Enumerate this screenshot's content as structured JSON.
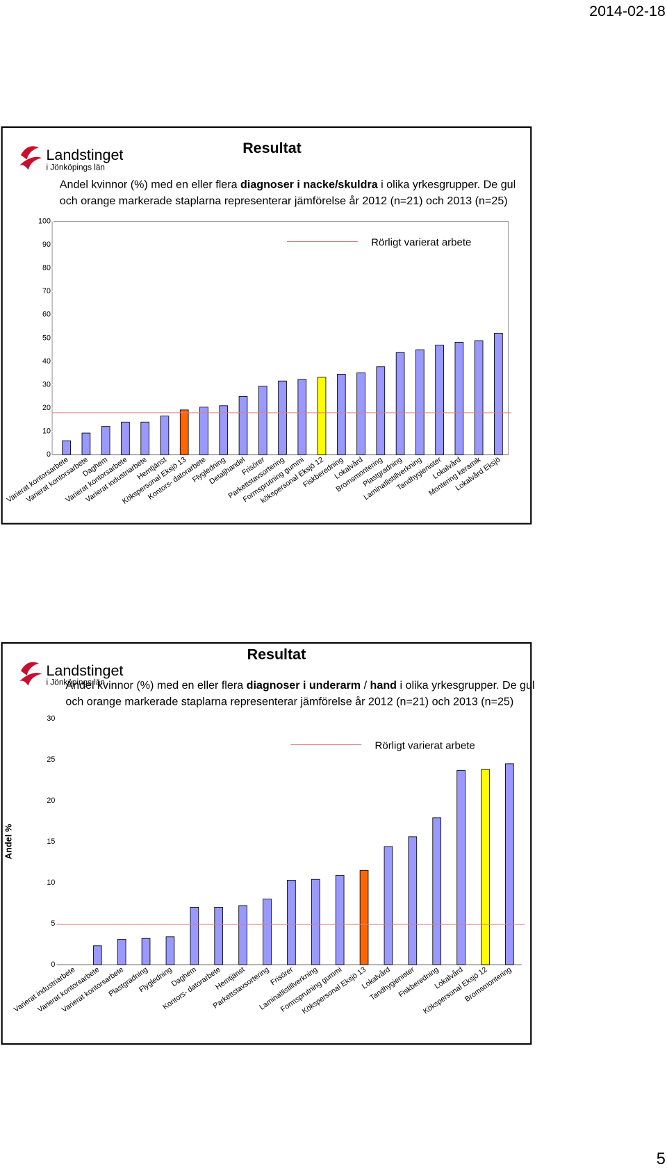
{
  "header": {
    "date": "2014-02-18"
  },
  "footer": {
    "page": "5"
  },
  "logo": {
    "name": "Landstinget",
    "region": "i Jönköpings län"
  },
  "descriptions": [
    [
      {
        "text": "Andel kvinnor (%) med en eller flera ",
        "bold": false
      },
      {
        "text": "diagnoser i nacke/skuldra",
        "bold": true
      },
      {
        "text": " i olika yrkesgrupper. De gul och orange markerade staplarna representerar jämförelse år 2012 (n=21) och 2013 (n=25)",
        "bold": false
      }
    ],
    [
      {
        "text": "Andel kvinnor (%) med en eller flera ",
        "bold": false
      },
      {
        "text": "diagnoser i underarm",
        "bold": true
      },
      {
        "text": " / ",
        "bold": false
      },
      {
        "text": "hand",
        "bold": true
      },
      {
        "text": " i olika yrkesgrupper. De gul och orange markerade staplarna representerar  jämförelse år 2012 (n=21) och 2013 (n=25)",
        "bold": false
      }
    ]
  ],
  "chart_data": [
    {
      "type": "bar",
      "title": "Resultat",
      "categories": [
        "Varierat kontorsarbete",
        "Varierat kontorsarbete",
        "Daghem",
        "Varierat kontorsarbete",
        "Varierat industriarbete",
        "Hemtjänst",
        "Kökspersonal Eksjö 13",
        "Kontors- datorarbete",
        "Flygledning",
        "Detaljhandel",
        "Frisörer",
        "Parkettstavsortering",
        "Formsprutning gummi",
        "kökspersonal Eksjö 12",
        "Fiskberedning",
        "Lokalvård",
        "Bromsmontering",
        "Plastgradning",
        "Laminatlistillverkning",
        "Tandhygienister",
        "Lokalvård",
        "Montering keramik",
        "Lokalvård Eksjö"
      ],
      "values": [
        6,
        9.3,
        12.1,
        14,
        14,
        16.6,
        19.2,
        20.4,
        21,
        25,
        29.4,
        31.6,
        32.3,
        33.2,
        34.5,
        35.1,
        37.7,
        43.8,
        45,
        47,
        48.2,
        48.9,
        52.1
      ],
      "colors": [
        "#9999ff",
        "#9999ff",
        "#9999ff",
        "#9999ff",
        "#9999ff",
        "#9999ff",
        "#ff6600",
        "#9999ff",
        "#9999ff",
        "#9999ff",
        "#9999ff",
        "#9999ff",
        "#9999ff",
        "#ffff00",
        "#9999ff",
        "#9999ff",
        "#9999ff",
        "#9999ff",
        "#9999ff",
        "#9999ff",
        "#9999ff",
        "#9999ff",
        "#9999ff"
      ],
      "reference_line": {
        "name": "Rörligt varierat arbete",
        "value": 18,
        "color": "#d98080"
      },
      "ylim": [
        0,
        100
      ],
      "yticks": [
        0,
        10,
        20,
        30,
        40,
        50,
        60,
        70,
        80,
        90,
        100
      ]
    },
    {
      "type": "bar",
      "title": "Resultat",
      "ylabel": "Andel %",
      "categories": [
        "Varierat industriarbete",
        "Varierat kontorsarbete",
        "Varierat kontorsarbete",
        "Plastgradning",
        "Flygledning",
        "Daghem",
        "Kontors- datorarbete",
        "Hemtjänst",
        "Parkettstavsortering",
        "Frisörer",
        "Laminatlistillverkning",
        "Formsprutning gummi",
        "Kökspersonal Eksjö 13",
        "Lokalvård",
        "Tandhygienister",
        "Fiskberedning",
        "Lokalvård",
        "Kökspersonal Eksjö 12",
        "Bromsmontering"
      ],
      "values": [
        0,
        2.3,
        3.1,
        3.2,
        3.4,
        7,
        7,
        7.2,
        8,
        10.3,
        10.4,
        10.9,
        11.5,
        14.4,
        15.6,
        17.9,
        23.7,
        23.8,
        24.5
      ],
      "colors": [
        "#9999ff",
        "#9999ff",
        "#9999ff",
        "#9999ff",
        "#9999ff",
        "#9999ff",
        "#9999ff",
        "#9999ff",
        "#9999ff",
        "#9999ff",
        "#9999ff",
        "#9999ff",
        "#ff6600",
        "#9999ff",
        "#9999ff",
        "#9999ff",
        "#9999ff",
        "#ffff00",
        "#9999ff"
      ],
      "reference_line": {
        "name": "Rörligt varierat arbete",
        "value": 4.9,
        "color": "#d98080"
      },
      "ylim": [
        0,
        30
      ],
      "yticks": [
        0,
        5,
        10,
        15,
        20,
        25,
        30
      ]
    }
  ]
}
